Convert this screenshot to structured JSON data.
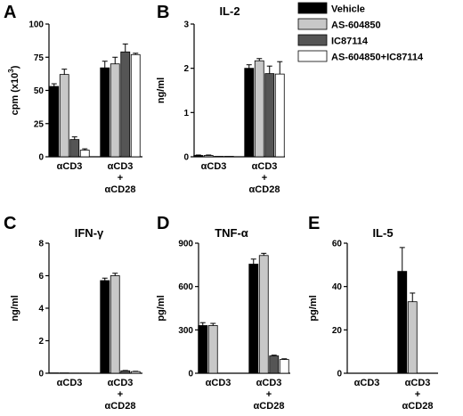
{
  "legend": {
    "series": [
      {
        "name": "Vehicle",
        "color": "#000000"
      },
      {
        "name": "AS-604850",
        "color": "#c8c8c8"
      },
      {
        "name": "IC87114",
        "color": "#555555"
      },
      {
        "name": "AS-604850+IC87114",
        "color": "#ffffff"
      }
    ]
  },
  "chart_data": [
    {
      "type": "bar",
      "panel": "A",
      "title": "",
      "ylabel": "cpm (x10",
      "ylabel_sup": "3",
      "ylabel_close": ")",
      "ylim": [
        0,
        100
      ],
      "yticks": [
        0,
        25,
        50,
        75,
        100
      ],
      "categories": [
        {
          "lines": [
            "αCD3"
          ]
        },
        {
          "lines": [
            "αCD3",
            "+",
            "αCD28"
          ]
        }
      ],
      "series": [
        {
          "name": "Vehicle",
          "values": [
            53,
            67
          ],
          "errors": [
            2,
            5
          ]
        },
        {
          "name": "AS-604850",
          "values": [
            62,
            70
          ],
          "errors": [
            4,
            5
          ]
        },
        {
          "name": "IC87114",
          "values": [
            13,
            79
          ],
          "errors": [
            2,
            6
          ]
        },
        {
          "name": "AS-604850+IC87114",
          "values": [
            5,
            77
          ],
          "errors": [
            1,
            1
          ]
        }
      ]
    },
    {
      "type": "bar",
      "panel": "B",
      "title": "IL-2",
      "ylabel": "ng/ml",
      "ylim": [
        0,
        3
      ],
      "yticks": [
        0,
        1,
        2,
        3
      ],
      "categories": [
        {
          "lines": [
            "αCD3"
          ]
        },
        {
          "lines": [
            "αCD3",
            "+",
            "αCD28"
          ]
        }
      ],
      "series": [
        {
          "name": "Vehicle",
          "values": [
            0.03,
            2.0
          ],
          "errors": [
            0.01,
            0.08
          ]
        },
        {
          "name": "AS-604850",
          "values": [
            0.03,
            2.17
          ],
          "errors": [
            0.01,
            0.05
          ]
        },
        {
          "name": "IC87114",
          "values": [
            0.01,
            1.88
          ],
          "errors": [
            0,
            0.17
          ]
        },
        {
          "name": "AS-604850+IC87114",
          "values": [
            0.01,
            1.87
          ],
          "errors": [
            0,
            0.28
          ]
        }
      ]
    },
    {
      "type": "bar",
      "panel": "C",
      "title": "IFN-γ",
      "ylabel": "ng/ml",
      "ylim": [
        0,
        8
      ],
      "yticks": [
        0,
        2,
        4,
        6,
        8
      ],
      "categories": [
        {
          "lines": [
            "αCD3"
          ]
        },
        {
          "lines": [
            "αCD3",
            "+",
            "αCD28"
          ]
        }
      ],
      "series": [
        {
          "name": "Vehicle",
          "values": [
            0.02,
            5.7
          ],
          "errors": [
            0,
            0.15
          ]
        },
        {
          "name": "AS-604850",
          "values": [
            0.02,
            6.0
          ],
          "errors": [
            0,
            0.15
          ]
        },
        {
          "name": "IC87114",
          "values": [
            0.01,
            0.15
          ],
          "errors": [
            0,
            0.02
          ]
        },
        {
          "name": "AS-604850+IC87114",
          "values": [
            0.01,
            0.1
          ],
          "errors": [
            0,
            0.02
          ]
        }
      ]
    },
    {
      "type": "bar",
      "panel": "D",
      "title": "TNF-α",
      "ylabel": "pg/ml",
      "ylim": [
        0,
        900
      ],
      "yticks": [
        0,
        300,
        600,
        900
      ],
      "categories": [
        {
          "lines": [
            "αCD3"
          ]
        },
        {
          "lines": [
            "αCD3",
            "+",
            "αCD28"
          ]
        }
      ],
      "series": [
        {
          "name": "Vehicle",
          "values": [
            330,
            755
          ],
          "errors": [
            20,
            35
          ]
        },
        {
          "name": "AS-604850",
          "values": [
            330,
            815
          ],
          "errors": [
            15,
            15
          ]
        },
        {
          "name": "IC87114",
          "values": [
            0,
            120
          ],
          "errors": [
            0,
            5
          ]
        },
        {
          "name": "AS-604850+IC87114",
          "values": [
            0,
            95
          ],
          "errors": [
            0,
            5
          ]
        }
      ]
    },
    {
      "type": "bar",
      "panel": "E",
      "title": "IL-5",
      "ylabel": "pg/ml",
      "ylim": [
        0,
        60
      ],
      "yticks": [
        0,
        20,
        40,
        60
      ],
      "categories": [
        {
          "lines": [
            "αCD3"
          ]
        },
        {
          "lines": [
            "αCD3",
            "+",
            "αCD28"
          ]
        }
      ],
      "series": [
        {
          "name": "Vehicle",
          "values": [
            0,
            47
          ],
          "errors": [
            0,
            11
          ]
        },
        {
          "name": "AS-604850",
          "values": [
            0,
            33
          ],
          "errors": [
            0,
            4
          ]
        },
        {
          "name": "IC87114",
          "values": [
            0,
            0
          ],
          "errors": [
            0,
            0
          ]
        },
        {
          "name": "AS-604850+IC87114",
          "values": [
            0,
            0
          ],
          "errors": [
            0,
            0
          ]
        }
      ]
    }
  ]
}
